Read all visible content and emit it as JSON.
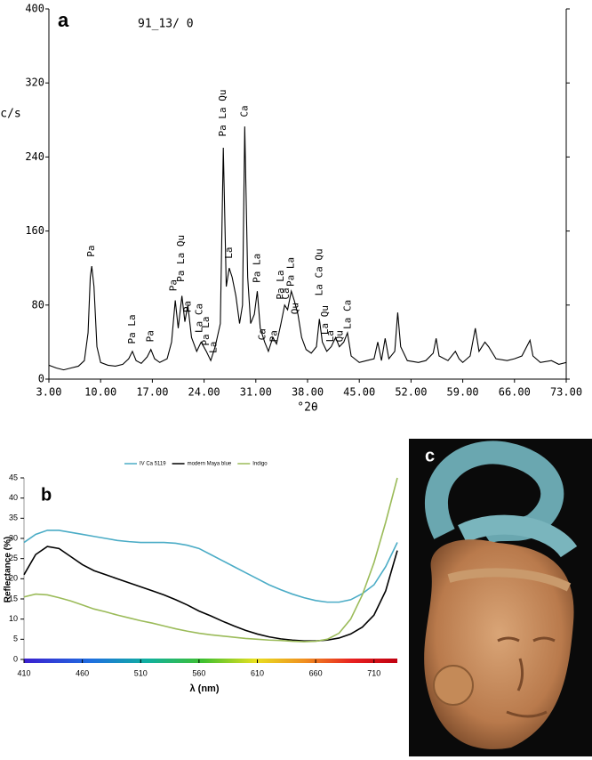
{
  "chart_data": [
    {
      "type": "line",
      "panel_label": "a",
      "title": "91_13/ 0",
      "y_label": "c/s",
      "x_label": "°2θ",
      "xlim": [
        3,
        73
      ],
      "ylim": [
        0,
        400
      ],
      "xticks": [
        {
          "value": 3,
          "label": "3.00"
        },
        {
          "value": 10,
          "label": "10.00"
        },
        {
          "value": 17,
          "label": "17.00"
        },
        {
          "value": 24,
          "label": "24.00"
        },
        {
          "value": 31,
          "label": "31.00"
        },
        {
          "value": 38,
          "label": "38.00"
        },
        {
          "value": 45,
          "label": "45.00"
        },
        {
          "value": 52,
          "label": "52.00"
        },
        {
          "value": 59,
          "label": "59.00"
        },
        {
          "value": 66,
          "label": "66.00"
        },
        {
          "value": 73,
          "label": "73.00"
        }
      ],
      "yticks": [
        0,
        80,
        160,
        240,
        320,
        400
      ],
      "grid": false,
      "x": [
        3,
        4,
        5,
        6,
        7,
        7.8,
        8.3,
        8.6,
        8.8,
        9.1,
        9.5,
        10,
        11,
        12,
        13,
        13.8,
        14.3,
        14.8,
        15.5,
        16.3,
        16.8,
        17.3,
        18,
        19,
        19.6,
        20.1,
        20.5,
        21,
        21.4,
        21.8,
        22.3,
        23,
        23.6,
        24.3,
        24.9,
        25.5,
        26.2,
        26.6,
        27,
        27.4,
        27.8,
        28.3,
        28.8,
        29.2,
        29.5,
        29.9,
        30.3,
        30.8,
        31.2,
        31.6,
        32.2,
        32.7,
        33.3,
        33.8,
        34.4,
        34.9,
        35.3,
        35.8,
        36.2,
        36.7,
        37.2,
        37.8,
        38.5,
        39.2,
        39.6,
        40,
        40.6,
        41.2,
        41.8,
        42.3,
        42.9,
        43.4,
        43.9,
        45,
        46,
        47,
        47.5,
        48,
        48.5,
        49,
        49.8,
        50.2,
        50.6,
        51.5,
        53,
        54,
        55,
        55.4,
        55.8,
        57,
        58,
        58.5,
        59,
        60,
        60.7,
        61.2,
        62,
        62.5,
        63.5,
        65,
        66,
        67,
        68.1,
        68.5,
        69.5,
        71,
        72,
        73
      ],
      "series": [
        {
          "color": "#000000",
          "values": [
            15,
            12,
            10,
            12,
            14,
            20,
            50,
            110,
            122,
            100,
            35,
            18,
            15,
            14,
            16,
            22,
            30,
            20,
            17,
            24,
            32,
            22,
            18,
            22,
            40,
            85,
            55,
            90,
            62,
            80,
            45,
            30,
            40,
            30,
            20,
            35,
            60,
            250,
            100,
            120,
            110,
            90,
            60,
            80,
            273,
            110,
            60,
            70,
            95,
            55,
            40,
            30,
            45,
            38,
            60,
            80,
            75,
            95,
            85,
            70,
            45,
            32,
            28,
            35,
            65,
            40,
            30,
            35,
            45,
            35,
            40,
            50,
            25,
            18,
            20,
            22,
            40,
            20,
            44,
            22,
            30,
            72,
            35,
            20,
            18,
            20,
            28,
            44,
            25,
            20,
            30,
            22,
            18,
            25,
            55,
            30,
            40,
            35,
            22,
            20,
            22,
            25,
            42,
            25,
            18,
            20,
            16,
            18
          ]
        }
      ],
      "annotations": [
        {
          "text": "Pa",
          "x": 8.8,
          "y": 132
        },
        {
          "text": "Pa La",
          "x": 14.3,
          "y": 38
        },
        {
          "text": "Pa",
          "x": 16.8,
          "y": 40
        },
        {
          "text": "Pa",
          "x": 19.9,
          "y": 95
        },
        {
          "text": "Pa La Qu",
          "x": 20.9,
          "y": 105
        },
        {
          "text": "Pa",
          "x": 21.8,
          "y": 72
        },
        {
          "text": "La Ca",
          "x": 23.4,
          "y": 50
        },
        {
          "text": "Pa La",
          "x": 24.3,
          "y": 36
        },
        {
          "text": "La",
          "x": 25.3,
          "y": 28
        },
        {
          "text": "Pa La Qu",
          "x": 26.6,
          "y": 262
        },
        {
          "text": "La",
          "x": 27.4,
          "y": 130
        },
        {
          "text": "Ca",
          "x": 29.5,
          "y": 283
        },
        {
          "text": "Pa La",
          "x": 31.2,
          "y": 104
        },
        {
          "text": "Ca",
          "x": 31.9,
          "y": 42
        },
        {
          "text": "Pa",
          "x": 33.5,
          "y": 40
        },
        {
          "text": "Pa La",
          "x": 34.4,
          "y": 86
        },
        {
          "text": "Ca",
          "x": 35.1,
          "y": 86
        },
        {
          "text": "Pa La",
          "x": 35.8,
          "y": 100
        },
        {
          "text": "Qu",
          "x": 36.4,
          "y": 70
        },
        {
          "text": "La Ca Qu",
          "x": 39.6,
          "y": 90
        },
        {
          "text": "La Qu",
          "x": 40.4,
          "y": 48
        },
        {
          "text": "La",
          "x": 41.1,
          "y": 40
        },
        {
          "text": "Qu",
          "x": 42.4,
          "y": 40
        },
        {
          "text": "La Ca",
          "x": 43.5,
          "y": 54
        }
      ]
    },
    {
      "type": "line",
      "panel_label": "b",
      "y_label": "Reflectance (%)",
      "x_label": "λ (nm)",
      "xlim": [
        410,
        730
      ],
      "ylim": [
        0,
        45
      ],
      "xticks": [
        410,
        460,
        510,
        560,
        610,
        660,
        710
      ],
      "yticks": [
        0,
        5,
        10,
        15,
        20,
        25,
        30,
        35,
        40,
        45
      ],
      "grid": false,
      "x": [
        410,
        420,
        430,
        440,
        450,
        460,
        470,
        480,
        490,
        500,
        510,
        520,
        530,
        540,
        550,
        560,
        570,
        580,
        590,
        600,
        610,
        620,
        630,
        640,
        650,
        660,
        670,
        680,
        690,
        700,
        710,
        720,
        730
      ],
      "series": [
        {
          "name": "IV Ca 5119",
          "color": "#4bacc6",
          "values": [
            29,
            31,
            32,
            32,
            31.5,
            31,
            30.5,
            30,
            29.5,
            29.2,
            29,
            29,
            29,
            28.8,
            28.3,
            27.5,
            26,
            24.5,
            23,
            21.5,
            20,
            18.5,
            17.3,
            16.2,
            15.3,
            14.6,
            14.2,
            14.2,
            14.8,
            16.3,
            18.5,
            23,
            29
          ]
        },
        {
          "name": "modern Maya blue",
          "color": "#000000",
          "values": [
            21,
            26,
            28,
            27.5,
            25.5,
            23.5,
            22,
            21,
            20,
            19,
            18,
            17,
            16,
            14.8,
            13.5,
            12,
            10.8,
            9.5,
            8.3,
            7.2,
            6.3,
            5.6,
            5.1,
            4.8,
            4.6,
            4.6,
            4.8,
            5.3,
            6.3,
            8,
            11,
            17,
            27
          ]
        },
        {
          "name": "Indigo",
          "color": "#9bbb59",
          "values": [
            15.5,
            16.2,
            16,
            15.3,
            14.5,
            13.5,
            12.5,
            11.8,
            11,
            10.3,
            9.6,
            9,
            8.3,
            7.6,
            7,
            6.5,
            6.1,
            5.8,
            5.5,
            5.2,
            5,
            4.8,
            4.7,
            4.5,
            4.4,
            4.5,
            5,
            6.5,
            10,
            16,
            24,
            34,
            45
          ]
        }
      ]
    }
  ],
  "photo": {
    "panel_label": "c"
  }
}
